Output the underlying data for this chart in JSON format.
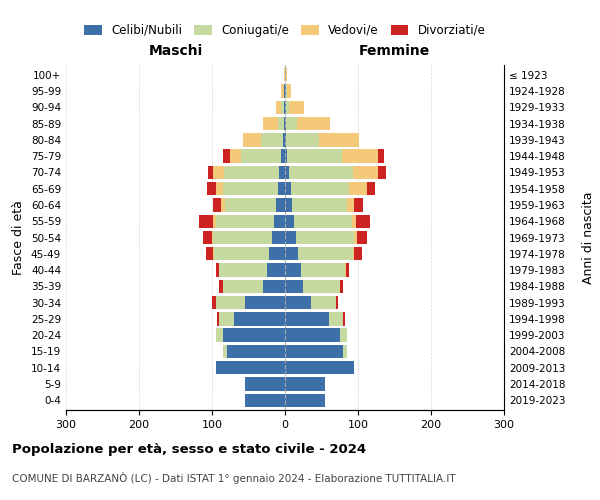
{
  "age_groups": [
    "0-4",
    "5-9",
    "10-14",
    "15-19",
    "20-24",
    "25-29",
    "30-34",
    "35-39",
    "40-44",
    "45-49",
    "50-54",
    "55-59",
    "60-64",
    "65-69",
    "70-74",
    "75-79",
    "80-84",
    "85-89",
    "90-94",
    "95-99",
    "100+"
  ],
  "birth_years": [
    "2019-2023",
    "2014-2018",
    "2009-2013",
    "2004-2008",
    "1999-2003",
    "1994-1998",
    "1989-1993",
    "1984-1988",
    "1979-1983",
    "1974-1978",
    "1969-1973",
    "1964-1968",
    "1959-1963",
    "1954-1958",
    "1949-1953",
    "1944-1948",
    "1939-1943",
    "1934-1938",
    "1929-1933",
    "1924-1928",
    "≤ 1923"
  ],
  "colors": {
    "celibi": "#3d6fa8",
    "coniugati": "#c5d9a0",
    "vedovi": "#f5c97a",
    "divorziati": "#cc2222"
  },
  "maschi": {
    "celibi": [
      55,
      55,
      95,
      80,
      85,
      70,
      55,
      30,
      25,
      22,
      18,
      15,
      12,
      10,
      8,
      5,
      3,
      2,
      2,
      1,
      0
    ],
    "coniugati": [
      0,
      0,
      0,
      5,
      10,
      20,
      40,
      55,
      65,
      75,
      80,
      80,
      70,
      75,
      75,
      55,
      30,
      8,
      3,
      1,
      0
    ],
    "vedovi": [
      0,
      0,
      0,
      0,
      0,
      0,
      0,
      0,
      0,
      1,
      2,
      3,
      5,
      10,
      15,
      15,
      25,
      20,
      8,
      3,
      1
    ],
    "divorziati": [
      0,
      0,
      0,
      0,
      0,
      3,
      5,
      5,
      5,
      10,
      12,
      20,
      12,
      12,
      8,
      10,
      0,
      0,
      0,
      0,
      0
    ]
  },
  "femmine": {
    "nubili": [
      55,
      55,
      95,
      80,
      75,
      60,
      35,
      25,
      22,
      18,
      15,
      12,
      10,
      8,
      5,
      3,
      2,
      1,
      1,
      1,
      0
    ],
    "coniugate": [
      0,
      0,
      0,
      5,
      10,
      20,
      35,
      50,
      60,
      75,
      80,
      80,
      75,
      80,
      88,
      75,
      45,
      15,
      5,
      2,
      1
    ],
    "vedove": [
      0,
      0,
      0,
      0,
      0,
      0,
      0,
      0,
      1,
      2,
      3,
      5,
      10,
      25,
      35,
      50,
      55,
      45,
      20,
      5,
      2
    ],
    "divorziate": [
      0,
      0,
      0,
      0,
      0,
      2,
      3,
      5,
      5,
      10,
      15,
      20,
      12,
      10,
      10,
      8,
      0,
      0,
      0,
      0,
      0
    ]
  },
  "title": "Popolazione per età, sesso e stato civile - 2024",
  "subtitle": "COMUNE DI BARZANÒ (LC) - Dati ISTAT 1° gennaio 2024 - Elaborazione TUTTITALIA.IT",
  "xlabel_left": "Maschi",
  "xlabel_right": "Femmine",
  "ylabel_left": "Fasce di età",
  "ylabel_right": "Anni di nascita",
  "xlim": 300,
  "legend_labels": [
    "Celibi/Nubili",
    "Coniugati/e",
    "Vedovi/e",
    "Divorziati/e"
  ]
}
